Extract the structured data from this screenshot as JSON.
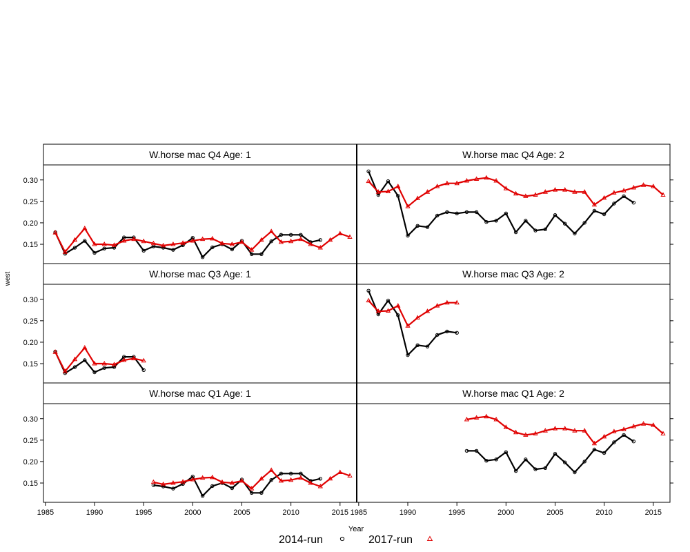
{
  "chart_data": {
    "type": "line",
    "xlabel": "Year",
    "ylabel": "west",
    "xlim": [
      1984.8,
      2016.7
    ],
    "ylim": [
      0.105,
      0.335
    ],
    "x_ticks": [
      1985,
      1990,
      1995,
      2000,
      2005,
      2010,
      2015
    ],
    "y_ticks": [
      0.15,
      0.2,
      0.25,
      0.3
    ],
    "y_tick_labels": [
      "0.15",
      "0.20",
      "0.25",
      "0.30"
    ],
    "colors": {
      "run2014": "#000000",
      "run2017": "#e00000"
    },
    "legend": {
      "position": "bottom-center",
      "items": [
        {
          "label": "2014-run",
          "marker": "circle",
          "color": "#000000"
        },
        {
          "label": "2017-run",
          "marker": "triangle",
          "color": "#e00000"
        }
      ]
    },
    "panels": [
      {
        "title": "W.horse mac Q4 Age: 1",
        "row": 0,
        "col": 0,
        "series": [
          {
            "name": "2014-run",
            "marker": "circle",
            "color": "#000000",
            "x": [
              1986,
              1987,
              1988,
              1989,
              1990,
              1991,
              1992,
              1993,
              1994,
              1995,
              1996,
              1997,
              1998,
              1999,
              2000,
              2001,
              2002,
              2003,
              2004,
              2005,
              2006,
              2007,
              2008,
              2009,
              2010,
              2011,
              2012,
              2013
            ],
            "y": [
              0.178,
              0.128,
              0.142,
              0.158,
              0.13,
              0.14,
              0.142,
              0.166,
              0.166,
              0.135,
              0.145,
              0.142,
              0.137,
              0.148,
              0.165,
              0.12,
              0.143,
              0.15,
              0.138,
              0.158,
              0.127,
              0.127,
              0.157,
              0.172,
              0.172,
              0.172,
              0.155,
              0.16
            ]
          },
          {
            "name": "2017-run",
            "marker": "triangle",
            "color": "#e00000",
            "x": [
              1986,
              1987,
              1988,
              1989,
              1990,
              1991,
              1992,
              1993,
              1994,
              1995,
              1996,
              1997,
              1998,
              1999,
              2000,
              2001,
              2002,
              2003,
              2004,
              2005,
              2006,
              2007,
              2008,
              2009,
              2010,
              2011,
              2012,
              2013,
              2014,
              2015,
              2016
            ],
            "y": [
              0.177,
              0.132,
              0.16,
              0.187,
              0.15,
              0.15,
              0.148,
              0.158,
              0.162,
              0.157,
              0.152,
              0.147,
              0.15,
              0.153,
              0.158,
              0.162,
              0.163,
              0.152,
              0.15,
              0.155,
              0.137,
              0.16,
              0.18,
              0.155,
              0.157,
              0.162,
              0.15,
              0.142,
              0.16,
              0.175,
              0.167
            ]
          }
        ]
      },
      {
        "title": "W.horse mac Q4 Age: 2",
        "row": 0,
        "col": 1,
        "series": [
          {
            "name": "2014-run",
            "marker": "circle",
            "color": "#000000",
            "x": [
              1986,
              1987,
              1988,
              1989,
              1990,
              1991,
              1992,
              1993,
              1994,
              1995,
              1996,
              1997,
              1998,
              1999,
              2000,
              2001,
              2002,
              2003,
              2004,
              2005,
              2006,
              2007,
              2008,
              2009,
              2010,
              2011,
              2012,
              2013
            ],
            "y": [
              0.32,
              0.265,
              0.297,
              0.263,
              0.17,
              0.193,
              0.19,
              0.217,
              0.225,
              0.222,
              0.225,
              0.225,
              0.202,
              0.205,
              0.222,
              0.178,
              0.205,
              0.182,
              0.185,
              0.218,
              0.198,
              0.175,
              0.2,
              0.228,
              0.22,
              0.245,
              0.262,
              0.247
            ]
          },
          {
            "name": "2017-run",
            "marker": "triangle",
            "color": "#e00000",
            "x": [
              1986,
              1987,
              1988,
              1989,
              1990,
              1991,
              1992,
              1993,
              1994,
              1995,
              1996,
              1997,
              1998,
              1999,
              2000,
              2001,
              2002,
              2003,
              2004,
              2005,
              2006,
              2007,
              2008,
              2009,
              2010,
              2011,
              2012,
              2013,
              2014,
              2015,
              2016
            ],
            "y": [
              0.297,
              0.272,
              0.273,
              0.285,
              0.238,
              0.257,
              0.272,
              0.285,
              0.292,
              0.292,
              0.298,
              0.302,
              0.305,
              0.298,
              0.28,
              0.268,
              0.262,
              0.265,
              0.272,
              0.277,
              0.277,
              0.272,
              0.272,
              0.242,
              0.258,
              0.27,
              0.275,
              0.282,
              0.288,
              0.285,
              0.265
            ]
          }
        ]
      },
      {
        "title": "W.horse mac Q3 Age: 1",
        "row": 1,
        "col": 0,
        "series": [
          {
            "name": "2014-run",
            "marker": "circle",
            "color": "#000000",
            "x": [
              1986,
              1987,
              1988,
              1989,
              1990,
              1991,
              1992,
              1993,
              1994,
              1995
            ],
            "y": [
              0.178,
              0.128,
              0.142,
              0.158,
              0.13,
              0.14,
              0.142,
              0.166,
              0.166,
              0.135
            ]
          },
          {
            "name": "2017-run",
            "marker": "triangle",
            "color": "#e00000",
            "x": [
              1986,
              1987,
              1988,
              1989,
              1990,
              1991,
              1992,
              1993,
              1994,
              1995
            ],
            "y": [
              0.177,
              0.132,
              0.16,
              0.187,
              0.15,
              0.15,
              0.148,
              0.158,
              0.162,
              0.157
            ]
          }
        ]
      },
      {
        "title": "W.horse mac Q3 Age: 2",
        "row": 1,
        "col": 1,
        "series": [
          {
            "name": "2014-run",
            "marker": "circle",
            "color": "#000000",
            "x": [
              1986,
              1987,
              1988,
              1989,
              1990,
              1991,
              1992,
              1993,
              1994,
              1995
            ],
            "y": [
              0.32,
              0.265,
              0.297,
              0.263,
              0.17,
              0.193,
              0.19,
              0.217,
              0.225,
              0.222
            ]
          },
          {
            "name": "2017-run",
            "marker": "triangle",
            "color": "#e00000",
            "x": [
              1986,
              1987,
              1988,
              1989,
              1990,
              1991,
              1992,
              1993,
              1994,
              1995
            ],
            "y": [
              0.297,
              0.272,
              0.273,
              0.285,
              0.238,
              0.257,
              0.272,
              0.285,
              0.292,
              0.292
            ]
          }
        ]
      },
      {
        "title": "W.horse mac Q1 Age: 1",
        "row": 2,
        "col": 0,
        "series": [
          {
            "name": "2014-run",
            "marker": "circle",
            "color": "#000000",
            "x": [
              1996,
              1997,
              1998,
              1999,
              2000,
              2001,
              2002,
              2003,
              2004,
              2005,
              2006,
              2007,
              2008,
              2009,
              2010,
              2011,
              2012,
              2013
            ],
            "y": [
              0.145,
              0.142,
              0.137,
              0.148,
              0.165,
              0.12,
              0.143,
              0.15,
              0.138,
              0.158,
              0.127,
              0.127,
              0.157,
              0.172,
              0.172,
              0.172,
              0.155,
              0.16
            ]
          },
          {
            "name": "2017-run",
            "marker": "triangle",
            "color": "#e00000",
            "x": [
              1996,
              1997,
              1998,
              1999,
              2000,
              2001,
              2002,
              2003,
              2004,
              2005,
              2006,
              2007,
              2008,
              2009,
              2010,
              2011,
              2012,
              2013,
              2014,
              2015,
              2016
            ],
            "y": [
              0.152,
              0.147,
              0.15,
              0.153,
              0.158,
              0.162,
              0.163,
              0.152,
              0.15,
              0.155,
              0.137,
              0.16,
              0.18,
              0.155,
              0.157,
              0.162,
              0.15,
              0.142,
              0.16,
              0.175,
              0.167
            ]
          }
        ]
      },
      {
        "title": "W.horse mac Q1 Age: 2",
        "row": 2,
        "col": 1,
        "series": [
          {
            "name": "2014-run",
            "marker": "circle",
            "color": "#000000",
            "x": [
              1996,
              1997,
              1998,
              1999,
              2000,
              2001,
              2002,
              2003,
              2004,
              2005,
              2006,
              2007,
              2008,
              2009,
              2010,
              2011,
              2012,
              2013
            ],
            "y": [
              0.225,
              0.225,
              0.202,
              0.205,
              0.222,
              0.178,
              0.205,
              0.182,
              0.185,
              0.218,
              0.198,
              0.175,
              0.2,
              0.228,
              0.22,
              0.245,
              0.262,
              0.247
            ]
          },
          {
            "name": "2017-run",
            "marker": "triangle",
            "color": "#e00000",
            "x": [
              1996,
              1997,
              1998,
              1999,
              2000,
              2001,
              2002,
              2003,
              2004,
              2005,
              2006,
              2007,
              2008,
              2009,
              2010,
              2011,
              2012,
              2013,
              2014,
              2015,
              2016
            ],
            "y": [
              0.298,
              0.302,
              0.305,
              0.298,
              0.28,
              0.268,
              0.262,
              0.265,
              0.272,
              0.277,
              0.277,
              0.272,
              0.272,
              0.242,
              0.258,
              0.27,
              0.275,
              0.282,
              0.288,
              0.285,
              0.265
            ]
          }
        ]
      }
    ]
  }
}
